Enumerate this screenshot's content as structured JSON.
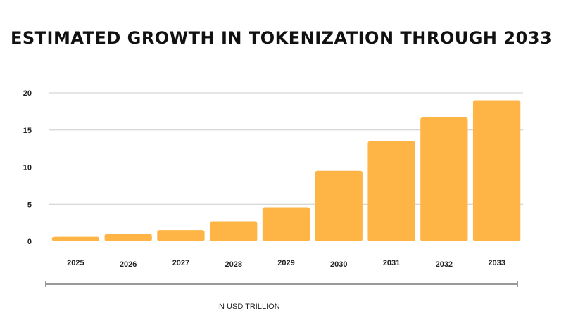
{
  "chart_data": {
    "type": "bar",
    "title": "ESTIMATED GROWTH IN TOKENIZATION THROUGH 2033",
    "xlabel": "IN USD TRILLION",
    "ylabel": "",
    "categories": [
      "2025",
      "2026",
      "2027",
      "2028",
      "2029",
      "2030",
      "2031",
      "2032",
      "2033"
    ],
    "values": [
      0.6,
      1.0,
      1.5,
      2.7,
      4.6,
      9.5,
      13.5,
      16.7,
      19.0
    ],
    "yticks": [
      0,
      5,
      10,
      15,
      20
    ],
    "ylim": [
      0,
      20
    ],
    "grid": true,
    "legend": "none",
    "bar_color": "#ffb545",
    "grid_color": "#cccccc"
  }
}
